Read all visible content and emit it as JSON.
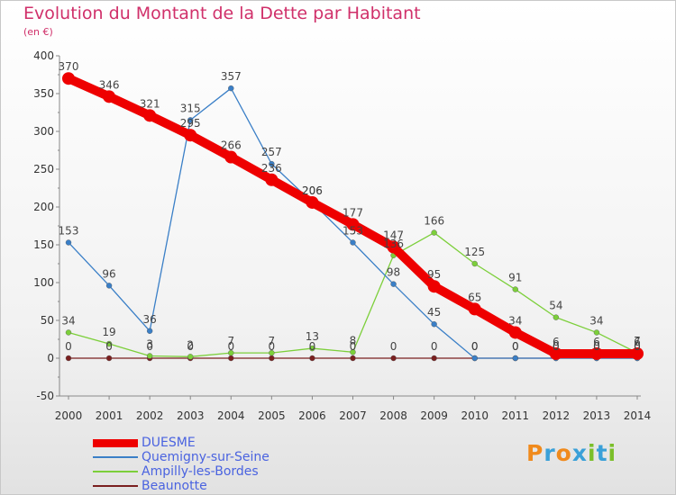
{
  "header": {
    "title": "Evolution du Montant de la Dette par Habitant",
    "subtitle": "(en €)"
  },
  "logo": {
    "text": "Proxiti",
    "colors": [
      "#f08a1c",
      "#3aa0d8",
      "#f08a1c",
      "#3aa0d8",
      "#7bbf2a",
      "#3aa0d8",
      "#7bbf2a"
    ]
  },
  "chart_data": {
    "type": "line",
    "title": "Evolution du Montant de la Dette par Habitant",
    "ylabel": "(en €)",
    "xlabel": "",
    "x": [
      "2000",
      "2001",
      "2002",
      "2003",
      "2004",
      "2005",
      "2006",
      "2007",
      "2008",
      "2009",
      "2010",
      "2011",
      "2012",
      "2013",
      "2014"
    ],
    "ylim": [
      -50,
      400
    ],
    "yticks": [
      -50,
      0,
      50,
      100,
      150,
      200,
      250,
      300,
      350,
      400
    ],
    "grid": false,
    "legend_position": "bottom-left",
    "series": [
      {
        "name": "DUESME",
        "color": "#ee0000",
        "values": [
          370,
          346,
          321,
          295,
          266,
          236,
          206,
          177,
          147,
          95,
          65,
          34,
          6,
          6,
          6
        ],
        "labels": [
          "370",
          "346",
          "321",
          "295",
          "266",
          "236",
          "206",
          "177",
          "147",
          "95",
          "65",
          "34",
          "6",
          "6",
          "6"
        ]
      },
      {
        "name": "Quemigny-sur-Seine",
        "color": "#3a7fc7",
        "values": [
          153,
          96,
          36,
          315,
          357,
          257,
          206,
          153,
          98,
          45,
          0,
          0,
          0,
          0,
          0
        ],
        "labels": [
          "153",
          "96",
          "36",
          "315",
          "357",
          "257",
          "206",
          "153",
          "98",
          "45",
          "0",
          "0",
          "0",
          "0",
          "0"
        ]
      },
      {
        "name": "Ampilly-les-Bordes",
        "color": "#7ccf3a",
        "values": [
          34,
          19,
          3,
          2,
          7,
          7,
          13,
          8,
          136,
          166,
          125,
          91,
          54,
          34,
          7
        ],
        "labels": [
          "34",
          "19",
          "3",
          "2",
          "7",
          "7",
          "13",
          "8",
          "136",
          "166",
          "125",
          "91",
          "54",
          "34",
          "7"
        ]
      },
      {
        "name": "Beaunotte",
        "color": "#7a1f1f",
        "values": [
          0,
          0,
          0,
          0,
          0,
          0,
          0,
          0,
          0,
          0,
          0,
          0,
          0,
          0,
          0
        ],
        "labels": [
          "0",
          "0",
          "0",
          "0",
          "0",
          "0",
          "0",
          "0",
          "0",
          "0",
          "0",
          "0",
          "0",
          "0",
          "0"
        ]
      }
    ]
  }
}
